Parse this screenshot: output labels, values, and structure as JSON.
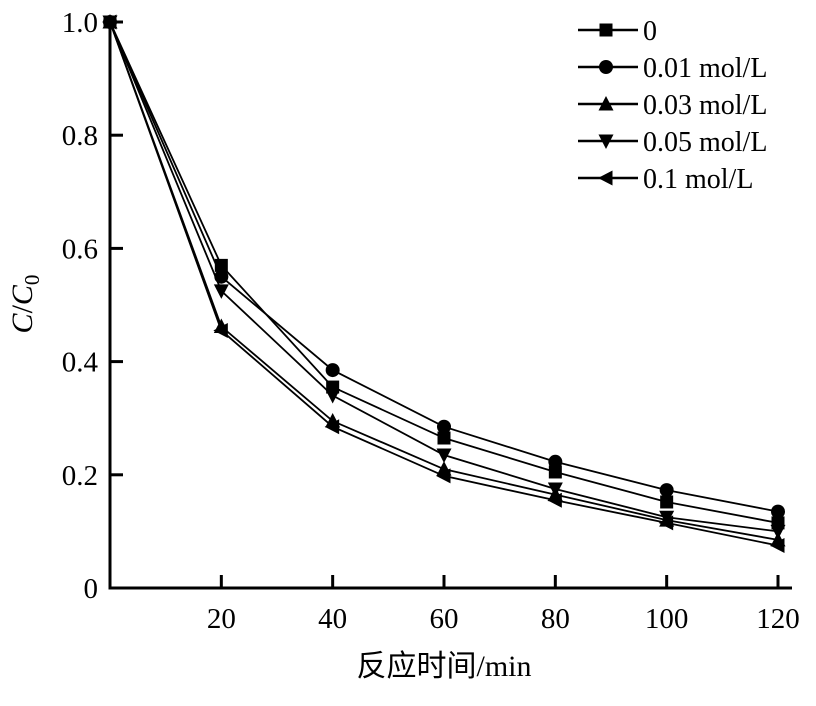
{
  "chart_data": {
    "type": "line",
    "x": [
      0,
      20,
      40,
      60,
      80,
      100,
      120
    ],
    "series": [
      {
        "name": "0",
        "marker": "square",
        "values": [
          1.0,
          0.57,
          0.355,
          0.265,
          0.205,
          0.152,
          0.115
        ]
      },
      {
        "name": "0.01 mol/L",
        "marker": "circle",
        "values": [
          1.0,
          0.55,
          0.385,
          0.285,
          0.223,
          0.173,
          0.135
        ]
      },
      {
        "name": "0.03 mol/L",
        "marker": "triangle-up",
        "values": [
          1.0,
          0.462,
          0.295,
          0.21,
          0.165,
          0.12,
          0.085
        ]
      },
      {
        "name": "0.05 mol/L",
        "marker": "triangle-down",
        "values": [
          1.0,
          0.525,
          0.34,
          0.235,
          0.175,
          0.125,
          0.1
        ]
      },
      {
        "name": "0.1 mol/L",
        "marker": "triangle-left",
        "values": [
          1.0,
          0.455,
          0.285,
          0.198,
          0.155,
          0.115,
          0.075
        ]
      }
    ],
    "xlabel": "反应时间/min",
    "ylabel": "C/C0",
    "xlim": [
      0,
      120
    ],
    "ylim": [
      0,
      1.0
    ],
    "xticks": [
      20,
      40,
      60,
      80,
      100,
      120
    ],
    "xtick_labels": [
      "20",
      "40",
      "60",
      "80",
      "100",
      "120"
    ],
    "yticks": [
      0,
      0.2,
      0.4,
      0.6,
      0.8,
      1.0
    ],
    "ytick_labels": [
      "0",
      "0.2",
      "0.4",
      "0.6",
      "0.8",
      "1.0"
    ],
    "legend_position": "top-right",
    "legend_frame": false,
    "grid": false,
    "line_color": "#000000",
    "marker_color": "#000000",
    "axis_color": "#000000",
    "background": "#ffffff"
  }
}
